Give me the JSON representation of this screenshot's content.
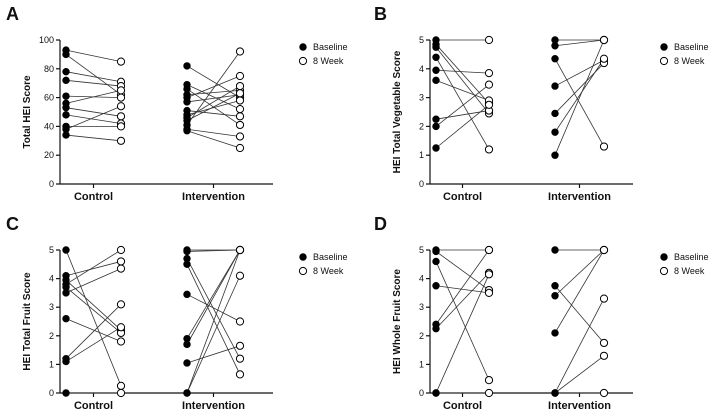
{
  "chart_data": [
    {
      "type": "scatter",
      "panel": "A",
      "ylabel": "Total HEI Score",
      "ylim": [
        0,
        100
      ],
      "yticks": [
        0,
        20,
        40,
        60,
        80,
        100
      ],
      "categories": [
        "Control",
        "Intervention"
      ],
      "legend": [
        "Baseline",
        "8 Week"
      ],
      "groups": [
        {
          "name": "Control",
          "pairs": [
            [
              93,
              85
            ],
            [
              90,
              62
            ],
            [
              78,
              71
            ],
            [
              72,
              68
            ],
            [
              61,
              60
            ],
            [
              56,
              65
            ],
            [
              53,
              47
            ],
            [
              48,
              42
            ],
            [
              40,
              40
            ],
            [
              38,
              54
            ],
            [
              34,
              30
            ]
          ]
        },
        {
          "name": "Intervention",
          "pairs": [
            [
              82,
              60
            ],
            [
              69,
              52
            ],
            [
              66,
              41
            ],
            [
              62,
              65
            ],
            [
              60,
              75
            ],
            [
              57,
              62
            ],
            [
              51,
              47
            ],
            [
              48,
              58
            ],
            [
              46,
              68
            ],
            [
              44,
              63
            ],
            [
              41,
              92
            ],
            [
              38,
              33
            ],
            [
              37,
              25
            ]
          ]
        }
      ]
    },
    {
      "type": "scatter",
      "panel": "B",
      "ylabel": "HEI Total Vegetable Score",
      "ylim": [
        0,
        5
      ],
      "yticks": [
        0,
        1,
        2,
        3,
        4,
        5
      ],
      "categories": [
        "Control",
        "Intervention"
      ],
      "legend": [
        "Baseline",
        "8 Week"
      ],
      "groups": [
        {
          "name": "Control",
          "pairs": [
            [
              5.0,
              5.0
            ],
            [
              4.85,
              2.8
            ],
            [
              4.75,
              2.45
            ],
            [
              4.4,
              1.2
            ],
            [
              3.95,
              3.85
            ],
            [
              3.6,
              2.9
            ],
            [
              2.25,
              2.55
            ],
            [
              2.0,
              3.45
            ],
            [
              1.25,
              2.75
            ]
          ]
        },
        {
          "name": "Intervention",
          "pairs": [
            [
              5.0,
              5.0
            ],
            [
              4.8,
              5.0
            ],
            [
              4.35,
              1.3
            ],
            [
              3.4,
              4.3
            ],
            [
              2.45,
              4.2
            ],
            [
              1.8,
              4.35
            ],
            [
              1.0,
              5.0
            ]
          ]
        }
      ]
    },
    {
      "type": "scatter",
      "panel": "C",
      "ylabel": "HEI Total Fruit Score",
      "ylim": [
        0,
        5
      ],
      "yticks": [
        0,
        1,
        2,
        3,
        4,
        5
      ],
      "categories": [
        "Control",
        "Intervention"
      ],
      "legend": [
        "Baseline",
        "8 Week"
      ],
      "groups": [
        {
          "name": "Control",
          "pairs": [
            [
              5.0,
              0.25
            ],
            [
              4.1,
              4.6
            ],
            [
              3.95,
              2.2
            ],
            [
              3.8,
              5.0
            ],
            [
              3.7,
              2.1
            ],
            [
              3.5,
              4.35
            ],
            [
              2.6,
              1.8
            ],
            [
              1.2,
              3.1
            ],
            [
              1.1,
              2.3
            ],
            [
              0.0,
              0.0
            ]
          ]
        },
        {
          "name": "Intervention",
          "pairs": [
            [
              5.0,
              5.0
            ],
            [
              4.95,
              5.0
            ],
            [
              4.7,
              1.2
            ],
            [
              4.5,
              0.65
            ],
            [
              3.45,
              2.5
            ],
            [
              1.9,
              5.0
            ],
            [
              1.7,
              5.0
            ],
            [
              1.05,
              1.65
            ],
            [
              0.0,
              4.1
            ],
            [
              0.0,
              5.0
            ]
          ]
        }
      ]
    },
    {
      "type": "scatter",
      "panel": "D",
      "ylabel": "HEI Whole Fruit Score",
      "ylim": [
        0,
        5
      ],
      "yticks": [
        0,
        1,
        2,
        3,
        4,
        5
      ],
      "categories": [
        "Control",
        "Intervention"
      ],
      "legend": [
        "Baseline",
        "8 Week"
      ],
      "groups": [
        {
          "name": "Control",
          "pairs": [
            [
              5.0,
              5.0
            ],
            [
              4.95,
              3.6
            ],
            [
              4.6,
              0.45
            ],
            [
              3.75,
              3.5
            ],
            [
              2.4,
              5.0
            ],
            [
              2.25,
              4.2
            ],
            [
              0.0,
              4.15
            ],
            [
              0.0,
              0.0
            ]
          ]
        },
        {
          "name": "Intervention",
          "pairs": [
            [
              5.0,
              5.0
            ],
            [
              3.75,
              1.75
            ],
            [
              3.4,
              5.0
            ],
            [
              2.1,
              5.0
            ],
            [
              0.0,
              3.3
            ],
            [
              0.0,
              1.3
            ],
            [
              0.0,
              0.0
            ]
          ]
        }
      ]
    }
  ]
}
